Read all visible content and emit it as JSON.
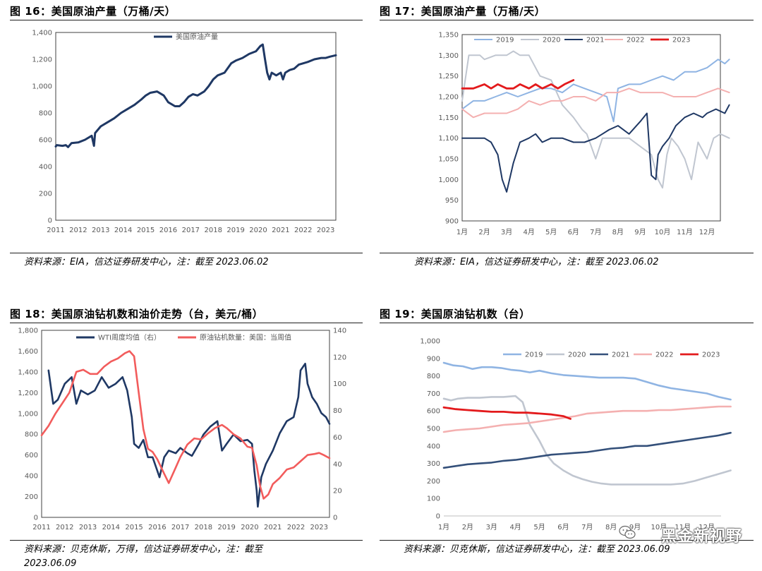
{
  "panels": [
    {
      "title": "图 16：美国原油产量（万桶/天）",
      "source": "资料来源：EIA，信达证券研发中心，注：截至 2023.06.02"
    },
    {
      "title": "图 17：美国原油产量（万桶/天）",
      "source": "资料来源：EIA，信达证券研发中心，注：截至 2023.06.02"
    },
    {
      "title": "图 18：美国原油钻机数和油价走势（台，美元/桶）",
      "source_line1": "资料来源：贝克休斯，万得，信达证券研发中心，注：截至",
      "source_line2": "2023.06.09"
    },
    {
      "title": "图 19：美国原油钻机数（台）",
      "source": "资料来源：贝克休斯，信达证券研发中心，注：截至 2023.06.09"
    }
  ],
  "watermark": "黑金新视野",
  "chart_data": [
    {
      "type": "line",
      "title": "",
      "x_ticks": [
        "2011",
        "2012",
        "2013",
        "2014",
        "2015",
        "2016",
        "2017",
        "2018",
        "2019",
        "2020",
        "2021",
        "2022",
        "2023"
      ],
      "y_ticks": [
        "0",
        "200",
        "400",
        "600",
        "800",
        "1,000",
        "1,200",
        "1,400"
      ],
      "ylim": [
        0,
        1400
      ],
      "xlim": [
        2011.0,
        2023.45
      ],
      "grid": false,
      "legend": "top-center",
      "series": [
        {
          "name": "美国原油产量",
          "color": "#1f3864",
          "x": [
            2011.0,
            2011.05,
            2011.3,
            2011.45,
            2011.55,
            2011.7,
            2012.0,
            2012.3,
            2012.6,
            2012.7,
            2012.75,
            2013.0,
            2013.3,
            2013.6,
            2013.9,
            2014.2,
            2014.5,
            2014.8,
            2015.0,
            2015.2,
            2015.5,
            2015.8,
            2016.0,
            2016.3,
            2016.5,
            2016.7,
            2016.9,
            2017.1,
            2017.3,
            2017.6,
            2017.8,
            2018.0,
            2018.2,
            2018.5,
            2018.8,
            2019.0,
            2019.3,
            2019.6,
            2019.9,
            2020.1,
            2020.2,
            2020.3,
            2020.4,
            2020.5,
            2020.6,
            2020.8,
            2021.0,
            2021.1,
            2021.2,
            2021.4,
            2021.6,
            2021.8,
            2022.0,
            2022.2,
            2022.5,
            2022.8,
            2023.0,
            2023.2,
            2023.45
          ],
          "y": [
            550,
            560,
            555,
            560,
            545,
            575,
            580,
            600,
            630,
            555,
            650,
            700,
            730,
            760,
            800,
            830,
            860,
            900,
            930,
            950,
            960,
            930,
            880,
            850,
            850,
            880,
            920,
            940,
            930,
            960,
            1000,
            1050,
            1080,
            1100,
            1170,
            1190,
            1210,
            1240,
            1260,
            1300,
            1310,
            1200,
            1100,
            1050,
            1100,
            1080,
            1100,
            1050,
            1100,
            1120,
            1130,
            1160,
            1170,
            1180,
            1200,
            1210,
            1210,
            1220,
            1230
          ]
        }
      ]
    },
    {
      "type": "line",
      "title": "",
      "categories": [
        "1月",
        "2月",
        "3月",
        "4月",
        "5月",
        "6月",
        "7月",
        "8月",
        "9月",
        "10月",
        "11月",
        "12月"
      ],
      "y_ticks": [
        "900",
        "950",
        "1,000",
        "1,050",
        "1,100",
        "1,150",
        "1,200",
        "1,250",
        "1,300",
        "1,350"
      ],
      "ylim": [
        900,
        1350
      ],
      "grid": false,
      "legend": "top",
      "series": [
        {
          "name": "2019",
          "color": "#8fb4e3",
          "x": [
            0,
            0.5,
            1,
            1.5,
            2,
            2.5,
            3,
            3.5,
            4,
            4.5,
            5,
            5.5,
            6,
            6.5,
            6.8,
            7,
            7.5,
            8,
            8.5,
            9,
            9.5,
            10,
            10.5,
            11,
            11.5,
            11.8,
            12
          ],
          "y": [
            1170,
            1190,
            1190,
            1200,
            1210,
            1200,
            1210,
            1220,
            1220,
            1210,
            1230,
            1220,
            1210,
            1200,
            1140,
            1220,
            1230,
            1230,
            1240,
            1250,
            1240,
            1260,
            1260,
            1270,
            1290,
            1280,
            1290
          ]
        },
        {
          "name": "2020",
          "color": "#c0c6d0",
          "x": [
            0,
            0.3,
            0.8,
            1,
            1.5,
            2,
            2.3,
            2.6,
            3,
            3.5,
            4,
            4.5,
            5,
            5.4,
            5.6,
            6,
            6.3,
            6.6,
            7,
            7.5,
            8,
            8.5,
            8.8,
            9,
            9.2,
            9.4,
            9.7,
            10,
            10.3,
            10.6,
            11,
            11.3,
            11.6,
            12
          ],
          "y": [
            1190,
            1300,
            1300,
            1290,
            1300,
            1300,
            1310,
            1300,
            1300,
            1250,
            1240,
            1180,
            1150,
            1120,
            1110,
            1050,
            1100,
            1100,
            1100,
            1100,
            1080,
            1060,
            1000,
            980,
            1060,
            1100,
            1080,
            1050,
            1000,
            1090,
            1050,
            1100,
            1110,
            1100
          ]
        },
        {
          "name": "2021",
          "color": "#1f3864",
          "x": [
            0,
            0.5,
            1,
            1.3,
            1.6,
            1.8,
            2,
            2.3,
            2.6,
            3,
            3.3,
            3.6,
            4,
            4.5,
            5,
            5.5,
            6,
            6.3,
            6.6,
            7,
            7.5,
            8,
            8.3,
            8.5,
            8.7,
            8.8,
            9,
            9.3,
            9.6,
            10,
            10.4,
            10.8,
            11,
            11.4,
            11.8,
            12
          ],
          "y": [
            1100,
            1100,
            1100,
            1090,
            1060,
            1000,
            970,
            1040,
            1090,
            1100,
            1110,
            1090,
            1100,
            1100,
            1090,
            1090,
            1100,
            1110,
            1120,
            1130,
            1110,
            1140,
            1160,
            1010,
            1000,
            1060,
            1080,
            1100,
            1130,
            1150,
            1160,
            1150,
            1160,
            1170,
            1160,
            1180
          ]
        },
        {
          "name": "2022",
          "color": "#f4b0b0",
          "x": [
            0,
            0.5,
            1,
            1.5,
            2,
            2.5,
            3,
            3.5,
            4,
            4.5,
            5,
            5.5,
            6,
            6.5,
            7,
            7.5,
            8,
            8.5,
            9,
            9.5,
            10,
            10.5,
            11,
            11.5,
            12
          ],
          "y": [
            1170,
            1150,
            1160,
            1160,
            1160,
            1170,
            1190,
            1180,
            1190,
            1190,
            1200,
            1200,
            1190,
            1210,
            1210,
            1220,
            1210,
            1210,
            1210,
            1200,
            1200,
            1200,
            1210,
            1220,
            1210
          ]
        },
        {
          "name": "2023",
          "color": "#e31a1c",
          "x": [
            0,
            0.5,
            1,
            1.3,
            1.6,
            2,
            2.3,
            2.6,
            3,
            3.3,
            3.6,
            4,
            4.3,
            4.6,
            5
          ],
          "y": [
            1220,
            1220,
            1230,
            1220,
            1230,
            1220,
            1220,
            1230,
            1220,
            1230,
            1220,
            1230,
            1220,
            1230,
            1240
          ]
        }
      ]
    },
    {
      "type": "line",
      "title": "",
      "x_ticks": [
        "2011",
        "2012",
        "2013",
        "2014",
        "2015",
        "2016",
        "2017",
        "2018",
        "2019",
        "2020",
        "2021",
        "2022",
        "2023"
      ],
      "y_left_ticks": [
        "0",
        "200",
        "400",
        "600",
        "800",
        "1,000",
        "1,200",
        "1,400",
        "1,600",
        "1,800"
      ],
      "y_right_ticks": [
        "0",
        "20",
        "40",
        "60",
        "80",
        "100",
        "120",
        "140"
      ],
      "ylim_left": [
        0,
        1800
      ],
      "ylim_right": [
        0,
        140
      ],
      "xlim": [
        2011.0,
        2023.45
      ],
      "grid": false,
      "legend": "top",
      "series": [
        {
          "name": "WTI周度均值（右）",
          "color": "#1f3864",
          "axis": "right",
          "x": [
            2011.3,
            2011.5,
            2011.7,
            2012.0,
            2012.3,
            2012.5,
            2012.7,
            2013.0,
            2013.3,
            2013.6,
            2013.9,
            2014.2,
            2014.5,
            2014.7,
            2014.9,
            2015.0,
            2015.2,
            2015.4,
            2015.6,
            2015.8,
            2016.0,
            2016.1,
            2016.3,
            2016.5,
            2016.8,
            2017.0,
            2017.3,
            2017.5,
            2017.8,
            2018.0,
            2018.3,
            2018.6,
            2018.8,
            2019.0,
            2019.3,
            2019.6,
            2019.9,
            2020.1,
            2020.2,
            2020.3,
            2020.35,
            2020.5,
            2020.7,
            2021.0,
            2021.3,
            2021.6,
            2021.9,
            2022.1,
            2022.2,
            2022.4,
            2022.5,
            2022.7,
            2022.9,
            2023.1,
            2023.3,
            2023.45
          ],
          "y": [
            110,
            85,
            88,
            100,
            105,
            85,
            95,
            92,
            95,
            105,
            97,
            100,
            105,
            95,
            75,
            55,
            52,
            58,
            45,
            45,
            35,
            30,
            45,
            50,
            48,
            52,
            48,
            46,
            55,
            62,
            68,
            72,
            50,
            55,
            62,
            57,
            58,
            55,
            35,
            20,
            8,
            30,
            40,
            50,
            63,
            72,
            75,
            90,
            110,
            115,
            100,
            90,
            85,
            78,
            75,
            70
          ]
        },
        {
          "name": "原油钻机数量：美国：当周值",
          "color": "#f25c5c",
          "axis": "left",
          "x": [
            2011.0,
            2011.3,
            2011.6,
            2011.9,
            2012.2,
            2012.5,
            2012.8,
            2013.1,
            2013.4,
            2013.7,
            2014.0,
            2014.3,
            2014.6,
            2014.8,
            2015.0,
            2015.2,
            2015.4,
            2015.6,
            2015.8,
            2016.0,
            2016.3,
            2016.5,
            2016.8,
            2017.0,
            2017.3,
            2017.6,
            2017.9,
            2018.2,
            2018.5,
            2018.8,
            2019.0,
            2019.3,
            2019.6,
            2019.9,
            2020.1,
            2020.3,
            2020.45,
            2020.6,
            2020.8,
            2021.0,
            2021.3,
            2021.6,
            2021.9,
            2022.2,
            2022.5,
            2022.8,
            2023.0,
            2023.2,
            2023.45
          ],
          "y": [
            790,
            880,
            1000,
            1100,
            1200,
            1400,
            1420,
            1380,
            1380,
            1450,
            1500,
            1530,
            1580,
            1600,
            1550,
            1200,
            850,
            660,
            630,
            560,
            420,
            330,
            480,
            580,
            700,
            760,
            750,
            810,
            860,
            890,
            860,
            800,
            760,
            680,
            670,
            500,
            300,
            180,
            220,
            320,
            380,
            460,
            480,
            540,
            600,
            610,
            620,
            600,
            570
          ]
        }
      ]
    },
    {
      "type": "line",
      "title": "",
      "categories": [
        "1月",
        "2月",
        "3月",
        "4月",
        "5月",
        "6月",
        "7月",
        "8月",
        "9月",
        "10月",
        "11月",
        "12月"
      ],
      "y_ticks": [
        "0",
        "100",
        "200",
        "300",
        "400",
        "500",
        "600",
        "700",
        "800",
        "900",
        "1,000"
      ],
      "ylim": [
        0,
        1000
      ],
      "grid": false,
      "legend": "top",
      "series": [
        {
          "name": "2019",
          "color": "#8fb4e3",
          "x": [
            0,
            0.4,
            0.8,
            1.2,
            1.6,
            2,
            2.4,
            2.8,
            3.2,
            3.6,
            4,
            4.5,
            5,
            5.5,
            6,
            6.5,
            7,
            7.5,
            8,
            8.5,
            9,
            9.5,
            10,
            10.5,
            11,
            11.5,
            12
          ],
          "y": [
            875,
            860,
            855,
            840,
            850,
            850,
            845,
            835,
            830,
            820,
            830,
            815,
            805,
            800,
            795,
            790,
            790,
            790,
            785,
            765,
            745,
            730,
            720,
            710,
            700,
            680,
            665
          ]
        },
        {
          "name": "2020",
          "color": "#c0c6d0",
          "x": [
            0,
            0.3,
            0.6,
            1,
            1.5,
            2,
            2.5,
            3,
            3.3,
            3.6,
            4,
            4.3,
            4.6,
            5,
            5.4,
            5.8,
            6.2,
            6.6,
            7,
            7.5,
            8,
            8.5,
            9,
            9.5,
            10,
            10.5,
            11,
            11.5,
            12
          ],
          "y": [
            670,
            660,
            670,
            675,
            675,
            680,
            680,
            685,
            650,
            520,
            430,
            350,
            300,
            260,
            230,
            210,
            195,
            185,
            180,
            180,
            180,
            180,
            180,
            180,
            185,
            200,
            220,
            240,
            260
          ]
        },
        {
          "name": "2021",
          "color": "#34507a",
          "x": [
            0,
            0.5,
            1,
            1.5,
            2,
            2.5,
            3,
            3.5,
            4,
            4.5,
            5,
            5.5,
            6,
            6.5,
            7,
            7.5,
            8,
            8.5,
            9,
            9.5,
            10,
            10.5,
            11,
            11.5,
            12
          ],
          "y": [
            275,
            285,
            295,
            300,
            305,
            315,
            320,
            330,
            340,
            350,
            355,
            360,
            365,
            375,
            385,
            390,
            400,
            400,
            410,
            420,
            430,
            440,
            450,
            460,
            475
          ]
        },
        {
          "name": "2022",
          "color": "#f4b0b0",
          "x": [
            0,
            0.5,
            1,
            1.5,
            2,
            2.5,
            3,
            3.5,
            4,
            4.5,
            5,
            5.5,
            6,
            6.5,
            7,
            7.5,
            8,
            8.5,
            9,
            9.5,
            10,
            10.5,
            11,
            11.5,
            12
          ],
          "y": [
            480,
            490,
            495,
            500,
            510,
            520,
            525,
            530,
            540,
            550,
            560,
            570,
            585,
            590,
            595,
            600,
            600,
            600,
            605,
            605,
            610,
            615,
            620,
            625,
            625
          ]
        },
        {
          "name": "2023",
          "color": "#e31a1c",
          "x": [
            0,
            0.5,
            1,
            1.5,
            2,
            2.5,
            3,
            3.5,
            4,
            4.5,
            5,
            5.3
          ],
          "y": [
            620,
            610,
            605,
            600,
            595,
            595,
            590,
            590,
            585,
            580,
            570,
            555
          ]
        }
      ]
    }
  ]
}
